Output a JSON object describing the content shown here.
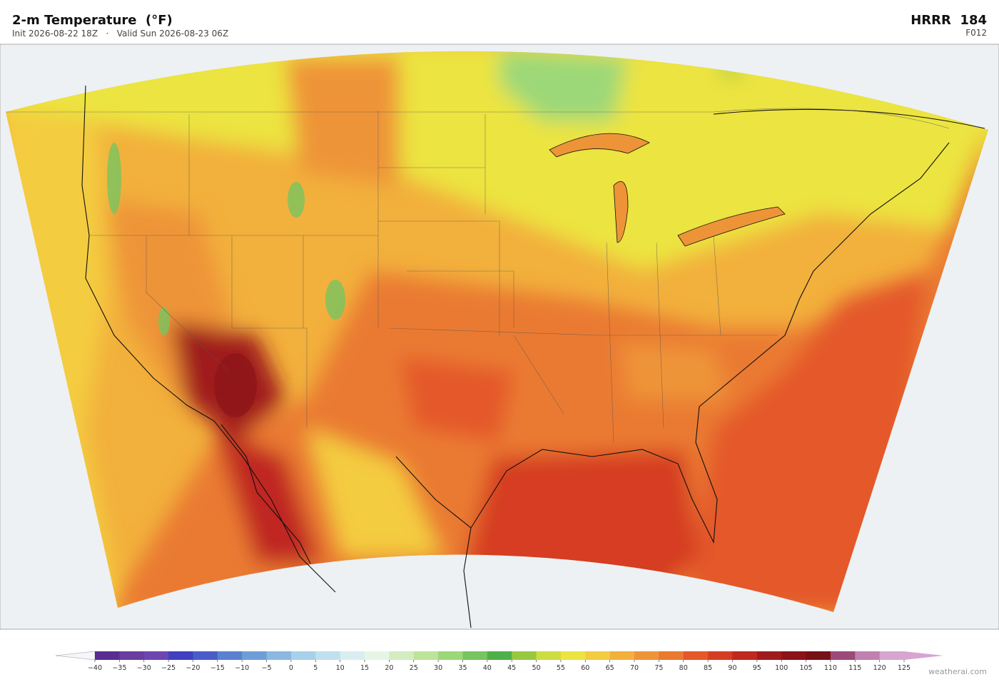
{
  "header": {
    "title": "2-m Temperature  (°F)",
    "subtitle": "Init 2026-08-22 18Z   ·   Valid Sun 2026-08-23 06Z",
    "model": "HRRR  184",
    "forecast_hour": "F012"
  },
  "colorbar": {
    "ticks": [
      {
        "value": -40,
        "label": "−40"
      },
      {
        "value": -35,
        "label": "−35"
      },
      {
        "value": -30,
        "label": "−30"
      },
      {
        "value": -25,
        "label": "−25"
      },
      {
        "value": -20,
        "label": "−20"
      },
      {
        "value": -15,
        "label": "−15"
      },
      {
        "value": -10,
        "label": "−10"
      },
      {
        "value": -5,
        "label": "−5"
      },
      0,
      5,
      10,
      15,
      20,
      25,
      30,
      35,
      40,
      45,
      50,
      55,
      60,
      65,
      70,
      75,
      80,
      85,
      90,
      95,
      100,
      105,
      110,
      115,
      120,
      125
    ],
    "colors": [
      "#5a2d91",
      "#6a3da0",
      "#6e46b0",
      "#4040c0",
      "#4a5cc8",
      "#5a80d0",
      "#6e9ed8",
      "#8ab8e0",
      "#a8d0e8",
      "#c0e0ee",
      "#d8eef2",
      "#e6f6e6",
      "#d4ecc0",
      "#bce49a",
      "#9cd878",
      "#78c460",
      "#4eb048",
      "#98c840",
      "#cddc40",
      "#ece440",
      "#f4cc40",
      "#f2b03c",
      "#ee9438",
      "#ea7a30",
      "#e4582a",
      "#d63c24",
      "#c02820",
      "#a01c1c",
      "#8a1418",
      "#781018",
      "#9c4a78",
      "#c080b0",
      "#d8a4d0"
    ],
    "under_color": "#f6f6fa",
    "over_color": "#d8a4d0"
  },
  "footer": {
    "watermark": "weatherai.com"
  }
}
